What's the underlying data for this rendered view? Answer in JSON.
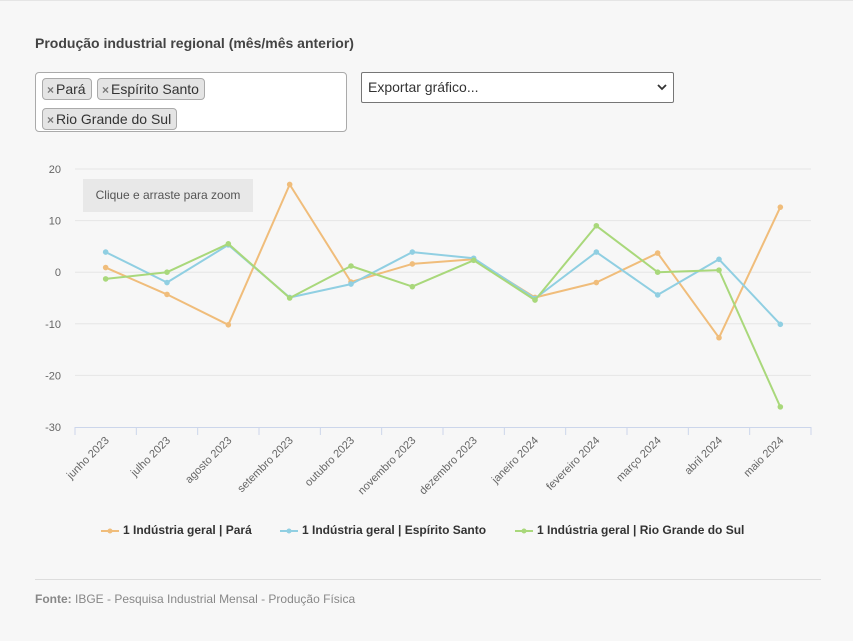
{
  "title": "Produção industrial regional (mês/mês anterior)",
  "selected_regions": [
    "Pará",
    "Espírito Santo",
    "Rio Grande do Sul"
  ],
  "remove_glyph": "×",
  "export_select": {
    "value": "Exportar gráfico..."
  },
  "zoom_hint": "Clique e arraste para zoom",
  "source": {
    "label": "Fonte:",
    "text": "IBGE - Pesquisa Industrial Mensal - Produção Física"
  },
  "colors": {
    "para": "#f0bd7b",
    "espirito_santo": "#90cfe2",
    "rio_grande_do_sul": "#a9d87b",
    "grid": "#e6e6e6",
    "axis": "#ccd6eb"
  },
  "chart_data": {
    "type": "line",
    "categories": [
      "junho 2023",
      "julho 2023",
      "agosto 2023",
      "setembro 2023",
      "outubro 2023",
      "novembro 2023",
      "dezembro 2023",
      "janeiro 2024",
      "fevereiro 2024",
      "março 2024",
      "abril 2024",
      "maio 2024"
    ],
    "ylim": [
      -30,
      20
    ],
    "yticks": [
      20,
      10,
      0,
      -10,
      -20,
      -30
    ],
    "grid": true,
    "legend": "bottom-center",
    "series": [
      {
        "name": "1 Indústria geral | Pará",
        "color": "#f0bd7b",
        "values": [
          0.9,
          -4.3,
          -10.2,
          17.0,
          -1.9,
          1.6,
          2.5,
          -4.9,
          -2.0,
          3.7,
          -12.7,
          12.6
        ]
      },
      {
        "name": "1 Indústria geral | Espírito Santo",
        "color": "#90cfe2",
        "values": [
          3.9,
          -2.0,
          5.3,
          -4.9,
          -2.3,
          3.9,
          2.7,
          -5.1,
          3.9,
          -4.4,
          2.5,
          -10.1
        ]
      },
      {
        "name": "1 Indústria geral | Rio Grande do Sul",
        "color": "#a9d87b",
        "values": [
          -1.3,
          0.0,
          5.5,
          -5.0,
          1.2,
          -2.8,
          2.3,
          -5.4,
          9.0,
          0.0,
          0.4,
          -26.1
        ]
      }
    ]
  }
}
